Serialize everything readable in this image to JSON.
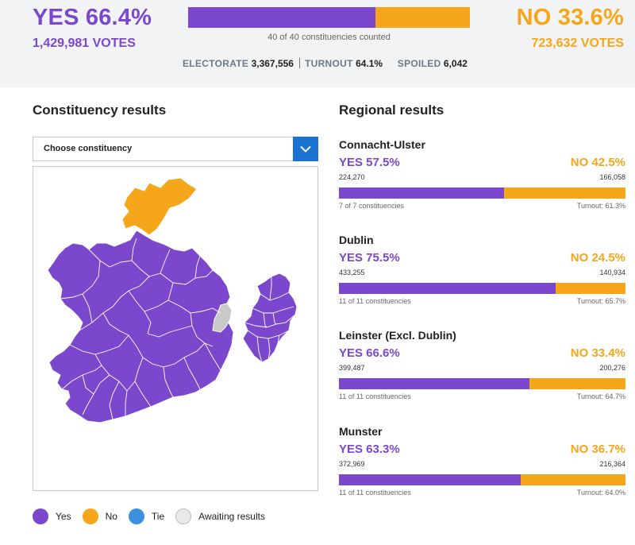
{
  "summary": {
    "yes_label": "YES 66.4%",
    "yes_votes": "1,429,981 VOTES",
    "no_label": "NO 33.6%",
    "no_votes": "723,632 VOTES",
    "yes_share": 66.4,
    "no_share": 33.6,
    "counted": "40 of 40 constituencies counted",
    "electorate_label": "ELECTORATE",
    "electorate_value": "3,367,556",
    "turnout_label": "TURNOUT",
    "turnout_value": "64.1%",
    "spoiled_label": "SPOILED",
    "spoiled_value": "6,042"
  },
  "constituency": {
    "title": "Constituency results",
    "select_label": "Choose constituency",
    "select_icon": "chevron-down-icon"
  },
  "legend": [
    {
      "label": "Yes",
      "color": "#7b47cc"
    },
    {
      "label": "No",
      "color": "#f5a61a"
    },
    {
      "label": "Tie",
      "color": "#3d8fe0"
    },
    {
      "label": "Awaiting results",
      "color": "#e9e9e9"
    }
  ],
  "regional": {
    "title": "Regional results",
    "regions": [
      {
        "name": "Connacht-Ulster",
        "yes": "YES 57.5%",
        "no": "NO 42.5%",
        "yes_votes": "224,270",
        "no_votes": "166,058",
        "yes_share": 57.5,
        "counted": "7 of 7 constituencies",
        "turnout": "Turnout: 61.3%"
      },
      {
        "name": "Dublin",
        "yes": "YES 75.5%",
        "no": "NO 24.5%",
        "yes_votes": "433,255",
        "no_votes": "140,934",
        "yes_share": 75.5,
        "counted": "11 of 11 constituencies",
        "turnout": "Turnout: 65.7%"
      },
      {
        "name": "Leinster (Excl. Dublin)",
        "yes": "YES 66.6%",
        "no": "NO 33.4%",
        "yes_votes": "399,487",
        "no_votes": "200,276",
        "yes_share": 66.6,
        "counted": "11 of 11 constituencies",
        "turnout": "Turnout: 64.7%"
      },
      {
        "name": "Munster",
        "yes": "YES 63.3%",
        "no": "NO 36.7%",
        "yes_votes": "372,969",
        "no_votes": "216,364",
        "yes_share": 63.3,
        "counted": "11 of 11 constituencies",
        "turnout": "Turnout: 64.0%"
      }
    ]
  },
  "colors": {
    "yes": "#7b47cc",
    "no": "#f5a61a",
    "tie": "#3d8fe0",
    "awaiting": "#c9c9c9",
    "accent": "#1a73d0"
  }
}
